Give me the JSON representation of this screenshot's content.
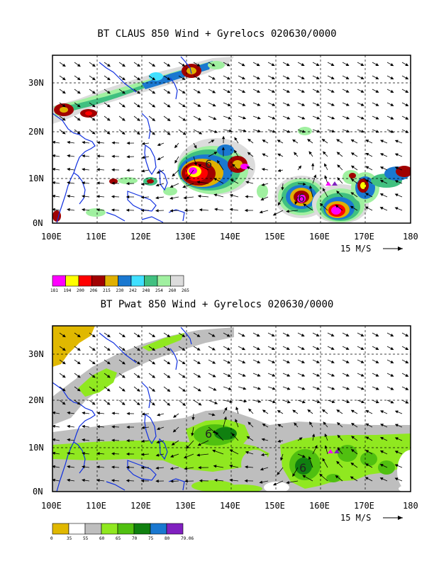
{
  "map1": {
    "title": "BT CLAUS 850 Wind + Gyrelocs 020630/0000",
    "lat_labels": [
      "30N",
      "20N",
      "10N",
      "0N"
    ],
    "lon_labels": [
      "100E",
      "110E",
      "120E",
      "130E",
      "140E",
      "150E",
      "160E",
      "170E",
      "180"
    ],
    "ref_vector": "15 M/S",
    "gyre_labels": [
      "6",
      "6"
    ],
    "legend": {
      "values": [
        "181",
        "194",
        "200",
        "206",
        "215",
        "230",
        "242",
        "248",
        "254",
        "260",
        "265"
      ],
      "colors": [
        "#ff00ff",
        "#ffff00",
        "#ff0000",
        "#a00000",
        "#e0b000",
        "#1a78d0",
        "#40e0ff",
        "#40c080",
        "#a0f0a0",
        "#dcdcdc"
      ]
    }
  },
  "map2": {
    "title": "BT Pwat 850 Wind + Gyrelocs 020630/0000",
    "lat_labels": [
      "30N",
      "20N",
      "10N",
      "0N"
    ],
    "lon_labels": [
      "100E",
      "110E",
      "120E",
      "130E",
      "140E",
      "150E",
      "160E",
      "170E",
      "180"
    ],
    "ref_vector": "15 M/S",
    "gyre_labels": [
      "6",
      "6"
    ],
    "legend": {
      "values": [
        "0",
        "35",
        "55",
        "60",
        "65",
        "70",
        "75",
        "80",
        "79.06"
      ],
      "colors": [
        "#e0b800",
        "#ffffff",
        "#bebebe",
        "#90e820",
        "#50c010",
        "#108010",
        "#1a78d0",
        "#8020c0"
      ]
    }
  },
  "colors": {
    "coast": "#1030e0",
    "frame": "#000000",
    "grid": "#000000"
  }
}
